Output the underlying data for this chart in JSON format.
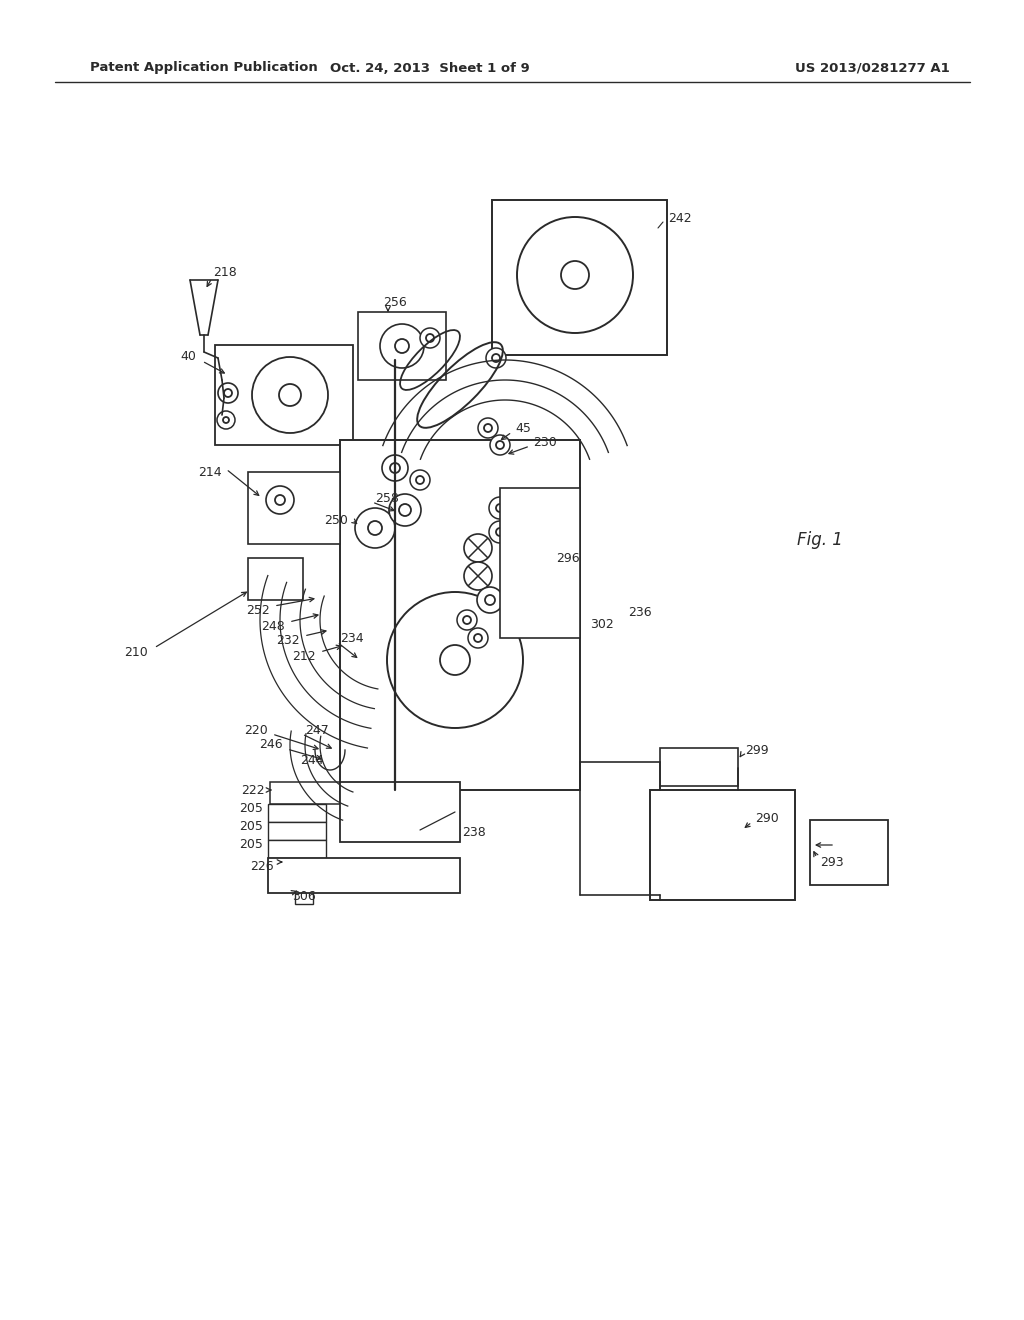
{
  "bg_color": "#ffffff",
  "header_left": "Patent Application Publication",
  "header_center": "Oct. 24, 2013  Sheet 1 of 9",
  "header_right": "US 2013/0281277 A1",
  "fig_label": "Fig. 1",
  "line_color": "#2a2a2a",
  "figsize": [
    10.24,
    13.2
  ],
  "dpi": 100
}
